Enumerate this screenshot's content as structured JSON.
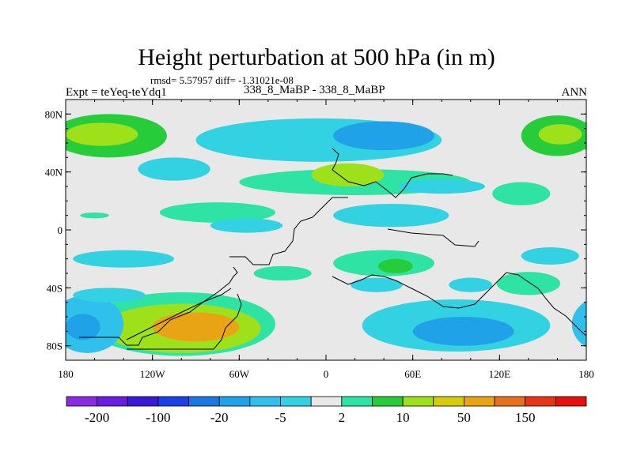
{
  "chart_data": {
    "type": "heatmap",
    "subtype": "filled-contour-map",
    "title": "Height perturbation at 500 hPa (in m)",
    "stats_text": "rmsd= 5.57957 diff= -1.31021e-08",
    "left_label": "Expt = teYeq-teYdq1",
    "center_label": "338_8_MaBP - 338_8_MaBP",
    "right_label": "ANN",
    "xlim": [
      -180,
      180
    ],
    "ylim": [
      -90,
      90
    ],
    "x_ticks": [
      {
        "value": -180,
        "label": "180"
      },
      {
        "value": -120,
        "label": "120W"
      },
      {
        "value": -60,
        "label": "60W"
      },
      {
        "value": 0,
        "label": "0"
      },
      {
        "value": 60,
        "label": "60E"
      },
      {
        "value": 120,
        "label": "120E"
      },
      {
        "value": 180,
        "label": "180"
      }
    ],
    "y_ticks": [
      {
        "value": 80,
        "label": "80N"
      },
      {
        "value": 40,
        "label": "40N"
      },
      {
        "value": 0,
        "label": "0"
      },
      {
        "value": -40,
        "label": "40S"
      },
      {
        "value": -80,
        "label": "80S"
      }
    ],
    "colorbar": {
      "levels": [
        -200,
        -150,
        -100,
        -50,
        -20,
        -10,
        -5,
        -2,
        2,
        5,
        10,
        20,
        50,
        100,
        150,
        200
      ],
      "labels": [
        {
          "after_box": 1,
          "text": "-200"
        },
        {
          "after_box": 3,
          "text": "-100"
        },
        {
          "after_box": 5,
          "text": "-20"
        },
        {
          "after_box": 7,
          "text": "-5"
        },
        {
          "after_box": 9,
          "text": "2"
        },
        {
          "after_box": 11,
          "text": "10"
        },
        {
          "after_box": 13,
          "text": "50"
        },
        {
          "after_box": 15,
          "text": "150"
        }
      ],
      "colors": [
        "#8a2be2",
        "#6a1ce0",
        "#3a1ad6",
        "#1b40e6",
        "#1a78e0",
        "#1fa2e8",
        "#2fc1ec",
        "#33d2e3",
        "#e8e8e8",
        "#2ee3a4",
        "#27cc3a",
        "#9ee01a",
        "#d6cc0c",
        "#e8a414",
        "#e6701c",
        "#e63616",
        "#e8100e"
      ]
    },
    "regions": [
      {
        "name": "sh-pacific-positive-max",
        "value": 50,
        "lon": -90,
        "lat": -67,
        "half_width_deg": 30,
        "half_height_deg": 10
      },
      {
        "name": "sh-pacific-positive",
        "value": 10,
        "lon": -100,
        "lat": -68,
        "half_width_deg": 55,
        "half_height_deg": 17
      },
      {
        "name": "sh-pacific-weak",
        "value": 3,
        "lon": -100,
        "lat": -65,
        "half_width_deg": 65,
        "half_height_deg": 22
      },
      {
        "name": "sh-dateline-negative",
        "value": -8,
        "lon": -165,
        "lat": -65,
        "half_width_deg": 25,
        "half_height_deg": 20
      },
      {
        "name": "sh-dateline-negative-core",
        "value": -20,
        "lon": -168,
        "lat": -67,
        "half_width_deg": 12,
        "half_height_deg": 9
      },
      {
        "name": "sh-pacific-negative-west",
        "value": -3,
        "lon": -150,
        "lat": -45,
        "half_width_deg": 25,
        "half_height_deg": 5
      },
      {
        "name": "sh-indian-negative",
        "value": -5,
        "lon": 90,
        "lat": -66,
        "half_width_deg": 65,
        "half_height_deg": 18
      },
      {
        "name": "sh-indian-negative-core",
        "value": -15,
        "lon": 95,
        "lat": -70,
        "half_width_deg": 35,
        "half_height_deg": 10
      },
      {
        "name": "sh-atlantic-positive",
        "value": 4,
        "lon": 40,
        "lat": -23,
        "half_width_deg": 35,
        "half_height_deg": 9
      },
      {
        "name": "sh-atlantic-positive-core",
        "value": 7,
        "lon": 48,
        "lat": -25,
        "half_width_deg": 12,
        "half_height_deg": 5
      },
      {
        "name": "sh-midlat-negative",
        "value": -3,
        "lon": 35,
        "lat": -38,
        "half_width_deg": 18,
        "half_height_deg": 5
      },
      {
        "name": "sh-midlat-negative-2",
        "value": -3,
        "lon": 100,
        "lat": -38,
        "half_width_deg": 15,
        "half_height_deg": 5
      },
      {
        "name": "sh-indian-positive",
        "value": 4,
        "lon": 140,
        "lat": -37,
        "half_width_deg": 22,
        "half_height_deg": 8
      },
      {
        "name": "sh-east-negative",
        "value": -3,
        "lon": 155,
        "lat": -18,
        "half_width_deg": 20,
        "half_height_deg": 6
      },
      {
        "name": "tropics-negative-pacific",
        "value": -3,
        "lon": -140,
        "lat": -20,
        "half_width_deg": 35,
        "half_height_deg": 6
      },
      {
        "name": "sh-south-america-positive",
        "value": 3,
        "lon": -30,
        "lat": -30,
        "half_width_deg": 20,
        "half_height_deg": 5
      },
      {
        "name": "nh-tropical-negative",
        "value": -5,
        "lon": 45,
        "lat": 10,
        "half_width_deg": 40,
        "half_height_deg": 8
      },
      {
        "name": "nh-tropical-negative-west",
        "value": -3,
        "lon": -55,
        "lat": 3,
        "half_width_deg": 25,
        "half_height_deg": 5
      },
      {
        "name": "nh-atlantic-positive",
        "value": 4,
        "lon": -75,
        "lat": 12,
        "half_width_deg": 40,
        "half_height_deg": 7
      },
      {
        "name": "nh-subtropic-positive",
        "value": 4,
        "lon": 20,
        "lat": 33,
        "half_width_deg": 80,
        "half_height_deg": 9
      },
      {
        "name": "nh-europe-positive-core",
        "value": 12,
        "lon": 15,
        "lat": 38,
        "half_width_deg": 25,
        "half_height_deg": 8
      },
      {
        "name": "nh-midlat-negative",
        "value": -5,
        "lon": -5,
        "lat": 62,
        "half_width_deg": 85,
        "half_height_deg": 15
      },
      {
        "name": "nh-midlat-negative-core",
        "value": -15,
        "lon": 40,
        "lat": 65,
        "half_width_deg": 35,
        "half_height_deg": 10
      },
      {
        "name": "nh-pacific-negative",
        "value": -5,
        "lon": -105,
        "lat": 42,
        "half_width_deg": 25,
        "half_height_deg": 8
      },
      {
        "name": "nh-dateline-positive",
        "value": 8,
        "lon": -150,
        "lat": 65,
        "half_width_deg": 40,
        "half_height_deg": 15
      },
      {
        "name": "nh-dateline-positive-core",
        "value": 12,
        "lon": -155,
        "lat": 66,
        "half_width_deg": 25,
        "half_height_deg": 8
      },
      {
        "name": "nh-east-positive",
        "value": 8,
        "lon": 160,
        "lat": 65,
        "half_width_deg": 25,
        "half_height_deg": 14
      },
      {
        "name": "nh-east-positive-core",
        "value": 12,
        "lon": 162,
        "lat": 66,
        "half_width_deg": 15,
        "half_height_deg": 7
      },
      {
        "name": "nh-east-positive-south",
        "value": 3,
        "lon": 135,
        "lat": 25,
        "half_width_deg": 20,
        "half_height_deg": 8
      },
      {
        "name": "tropical-positive-west",
        "value": 3,
        "lon": -160,
        "lat": 10,
        "half_width_deg": 10,
        "half_height_deg": 2
      },
      {
        "name": "nh-subtropic-negative-east",
        "value": -3,
        "lon": 80,
        "lat": 30,
        "half_width_deg": 30,
        "half_height_deg": 5
      }
    ]
  }
}
